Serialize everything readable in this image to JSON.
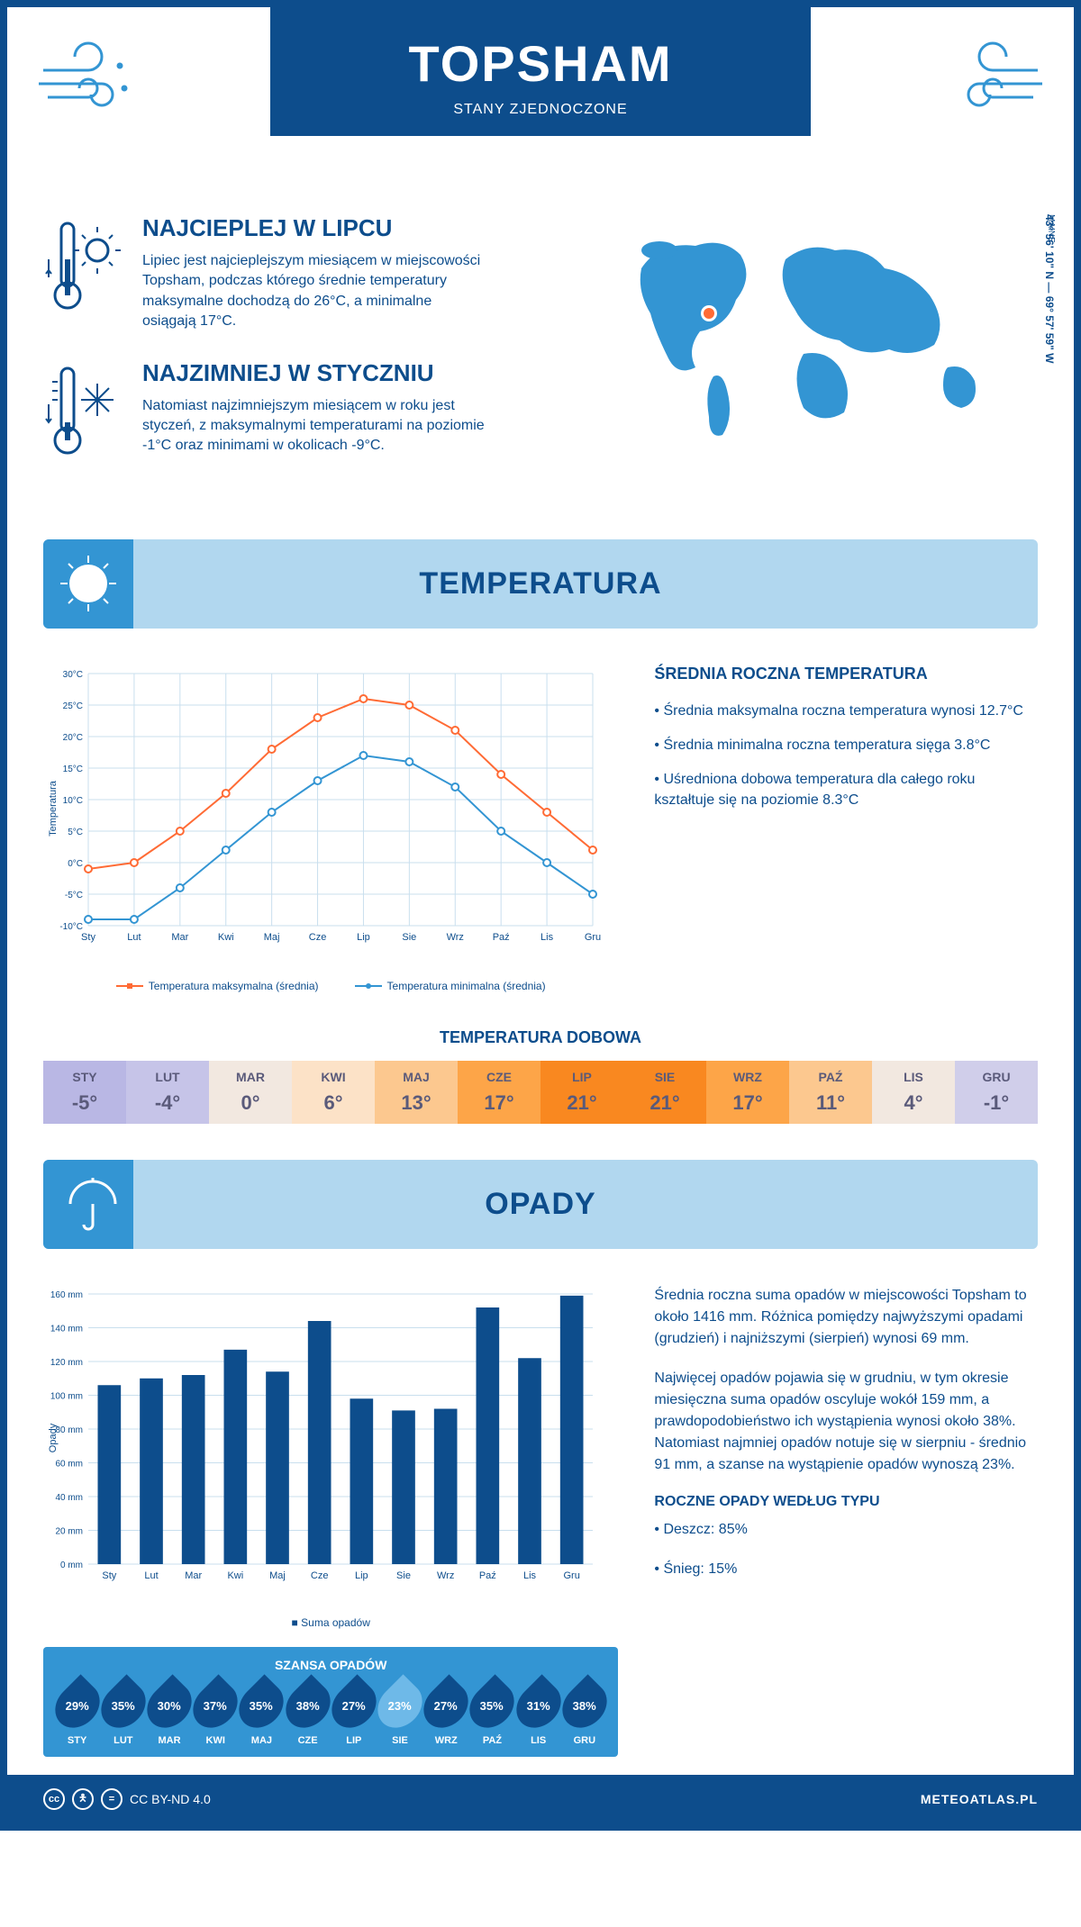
{
  "header": {
    "title": "TOPSHAM",
    "subtitle": "STANY ZJEDNOCZONE"
  },
  "location": {
    "coords": "43° 56' 10\" N — 69° 57' 59\" W",
    "state": "MAINE",
    "marker_color": "#ff6b35",
    "map_color": "#3395d3"
  },
  "intro": {
    "hot": {
      "title": "NAJCIEPLEJ W LIPCU",
      "text": "Lipiec jest najcieplejszym miesiącem w miejscowości Topsham, podczas którego średnie temperatury maksymalne dochodzą do 26°C, a minimalne osiągają 17°C."
    },
    "cold": {
      "title": "NAJZIMNIEJ W STYCZNIU",
      "text": "Natomiast najzimniejszym miesiącem w roku jest styczeń, z maksymalnymi temperaturami na poziomie -1°C oraz minimami w okolicach -9°C."
    }
  },
  "temperature": {
    "section_title": "TEMPERATURA",
    "side_title": "ŚREDNIA ROCZNA TEMPERATURA",
    "side_points": [
      "• Średnia maksymalna roczna temperatura wynosi 12.7°C",
      "• Średnia minimalna roczna temperatura sięga 3.8°C",
      "• Uśredniona dobowa temperatura dla całego roku kształtuje się na poziomie 8.3°C"
    ],
    "chart": {
      "type": "line",
      "y_label": "Temperatura",
      "months": [
        "Sty",
        "Lut",
        "Mar",
        "Kwi",
        "Maj",
        "Cze",
        "Lip",
        "Sie",
        "Wrz",
        "Paź",
        "Lis",
        "Gru"
      ],
      "ylim": [
        -10,
        30
      ],
      "ytick_step": 5,
      "max_series": {
        "label": "Temperatura maksymalna (średnia)",
        "color": "#ff6b35",
        "values": [
          -1,
          0,
          5,
          11,
          18,
          23,
          26,
          25,
          21,
          14,
          8,
          2
        ]
      },
      "min_series": {
        "label": "Temperatura minimalna (średnia)",
        "color": "#3395d3",
        "values": [
          -9,
          -9,
          -4,
          2,
          8,
          13,
          17,
          16,
          12,
          5,
          0,
          -5
        ]
      },
      "grid_color": "#c9dfee",
      "background": "#ffffff",
      "line_width": 2,
      "marker_size": 4
    },
    "daily": {
      "title": "TEMPERATURA DOBOWA",
      "months": [
        "STY",
        "LUT",
        "MAR",
        "KWI",
        "MAJ",
        "CZE",
        "LIP",
        "SIE",
        "WRZ",
        "PAŹ",
        "LIS",
        "GRU"
      ],
      "values": [
        "-5°",
        "-4°",
        "0°",
        "6°",
        "13°",
        "17°",
        "21°",
        "21°",
        "17°",
        "11°",
        "4°",
        "-1°"
      ],
      "colors": [
        "#b9b7e4",
        "#c6c4e8",
        "#f2e8e0",
        "#fce2c7",
        "#fcc88f",
        "#fda548",
        "#f98820",
        "#f98820",
        "#fda548",
        "#fcc88f",
        "#f2e8e0",
        "#d0ceea"
      ],
      "text_color": "#5a5a7a"
    }
  },
  "precipitation": {
    "section_title": "OPADY",
    "chart": {
      "type": "bar",
      "y_label": "Opady",
      "months": [
        "Sty",
        "Lut",
        "Mar",
        "Kwi",
        "Maj",
        "Cze",
        "Lip",
        "Sie",
        "Wrz",
        "Paź",
        "Lis",
        "Gru"
      ],
      "values": [
        106,
        110,
        112,
        127,
        114,
        144,
        98,
        91,
        92,
        152,
        122,
        159
      ],
      "ylim": [
        0,
        160
      ],
      "ytick_step": 20,
      "bar_color": "#0d4d8c",
      "bar_width": 0.55,
      "grid_color": "#c9dfee",
      "legend": "Suma opadów"
    },
    "side_text_1": "Średnia roczna suma opadów w miejscowości Topsham to około 1416 mm. Różnica pomiędzy najwyższymi opadami (grudzień) i najniższymi (sierpień) wynosi 69 mm.",
    "side_text_2": "Najwięcej opadów pojawia się w grudniu, w tym okresie miesięczna suma opadów oscyluje wokół 159 mm, a prawdopodobieństwo ich wystąpienia wynosi około 38%. Natomiast najmniej opadów notuje się w sierpniu - średnio 91 mm, a szanse na wystąpienie opadów wynoszą 23%.",
    "chance": {
      "title": "SZANSA OPADÓW",
      "months": [
        "STY",
        "LUT",
        "MAR",
        "KWI",
        "MAJ",
        "CZE",
        "LIP",
        "SIE",
        "WRZ",
        "PAŹ",
        "LIS",
        "GRU"
      ],
      "values": [
        "29%",
        "35%",
        "30%",
        "37%",
        "35%",
        "38%",
        "27%",
        "23%",
        "27%",
        "35%",
        "31%",
        "38%"
      ],
      "min_index": 7,
      "drop_color": "#0d4d8c",
      "min_color": "#6eb9e8"
    },
    "by_type": {
      "title": "ROCZNE OPADY WEDŁUG TYPU",
      "lines": [
        "• Deszcz: 85%",
        "• Śnieg: 15%"
      ]
    }
  },
  "footer": {
    "license": "CC BY-ND 4.0",
    "site": "METEOATLAS.PL"
  },
  "palette": {
    "primary": "#0d4d8c",
    "light_blue": "#b1d7ef",
    "mid_blue": "#3395d3",
    "orange": "#ff6b35"
  }
}
